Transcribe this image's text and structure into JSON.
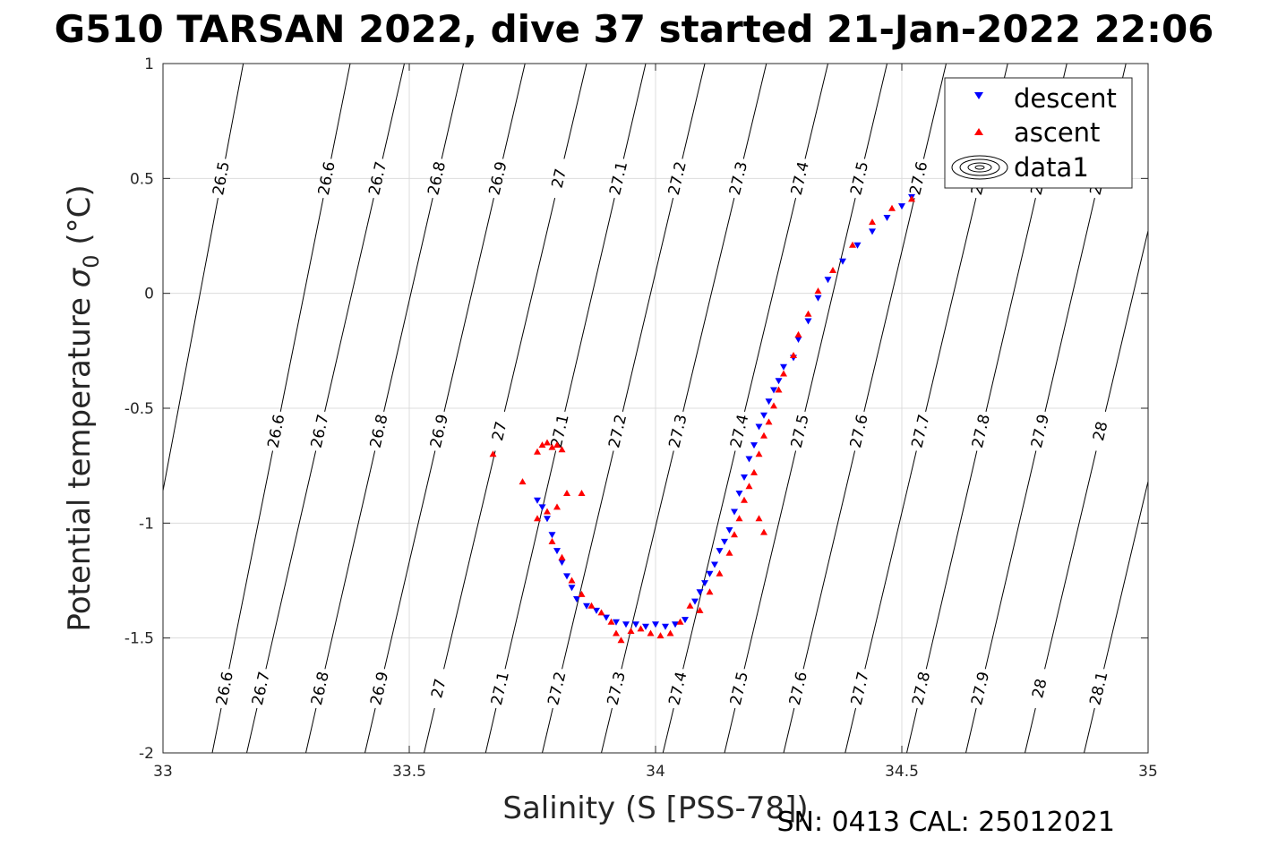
{
  "chart_data": {
    "type": "scatter",
    "title": "G510 TARSAN 2022, dive 37 started 21-Jan-2022 22:06",
    "xlabel": "Salinity (S [PSS-78])",
    "ylabel": "Potential temperature σ₀ (°C)",
    "ylabel_main": "Potential temperature ",
    "ylabel_sym": "σ",
    "ylabel_sub": "0",
    "ylabel_unit": " (°C)",
    "xlim": [
      33,
      35
    ],
    "ylim": [
      -2,
      1
    ],
    "xticks": [
      "33",
      "33.5",
      "34",
      "34.5",
      "35"
    ],
    "yticks": [
      "-2",
      "-1.5",
      "-1",
      "-0.5",
      "0",
      "0.5",
      "1"
    ],
    "grid": true,
    "legend_position": "top-right",
    "legend": [
      "descent",
      "ascent",
      "data1"
    ],
    "footer": "SN: 0413  CAL: 25012021",
    "colors": {
      "descent": "#0000ff",
      "ascent": "#ff0000",
      "contour": "#000000",
      "grid": "#dcdcdc"
    },
    "contour_levels": [
      "26.5",
      "26.6",
      "26.7",
      "26.8",
      "26.9",
      "27",
      "27.1",
      "27.2",
      "27.3",
      "27.4",
      "27.5",
      "27.6",
      "27.7",
      "27.8",
      "27.9",
      "28",
      "28.1"
    ],
    "contour_lines": [
      {
        "level": "26.5",
        "bottom": [
          32.9,
          -2
        ],
        "top": [
          33.163,
          1
        ]
      },
      {
        "level": "26.6",
        "bottom": [
          33.1,
          -2
        ],
        "top": [
          33.38,
          1
        ]
      },
      {
        "level": "26.7",
        "bottom": [
          33.17,
          -2
        ],
        "top": [
          33.49,
          1
        ]
      },
      {
        "level": "26.8",
        "bottom": [
          33.29,
          -2
        ],
        "top": [
          33.61,
          1
        ]
      },
      {
        "level": "26.9",
        "bottom": [
          33.41,
          -2
        ],
        "top": [
          33.735,
          1
        ]
      },
      {
        "level": "27",
        "bottom": [
          33.53,
          -2
        ],
        "top": [
          33.86,
          1
        ]
      },
      {
        "level": "27.1",
        "bottom": [
          33.655,
          -2
        ],
        "top": [
          33.98,
          1
        ]
      },
      {
        "level": "27.2",
        "bottom": [
          33.77,
          -2
        ],
        "top": [
          34.1,
          1
        ]
      },
      {
        "level": "27.3",
        "bottom": [
          33.89,
          -2
        ],
        "top": [
          34.225,
          1
        ]
      },
      {
        "level": "27.4",
        "bottom": [
          34.015,
          -2
        ],
        "top": [
          34.35,
          1
        ]
      },
      {
        "level": "27.5",
        "bottom": [
          34.14,
          -2
        ],
        "top": [
          34.47,
          1
        ]
      },
      {
        "level": "27.6",
        "bottom": [
          34.26,
          -2
        ],
        "top": [
          34.59,
          1
        ]
      },
      {
        "level": "27.7",
        "bottom": [
          34.385,
          -2
        ],
        "top": [
          34.715,
          1
        ]
      },
      {
        "level": "27.8",
        "bottom": [
          34.51,
          -2
        ],
        "top": [
          34.835,
          1
        ]
      },
      {
        "level": "27.9",
        "bottom": [
          34.63,
          -2
        ],
        "top": [
          34.955,
          1
        ]
      },
      {
        "level": "28",
        "bottom": [
          34.75,
          -2
        ],
        "top": [
          35.08,
          1
        ]
      },
      {
        "level": "28.1",
        "bottom": [
          34.87,
          -2
        ],
        "top": [
          35.2,
          1
        ]
      }
    ],
    "series": [
      {
        "name": "descent",
        "x": [
          34.52,
          34.5,
          34.47,
          34.44,
          34.41,
          34.38,
          34.35,
          34.33,
          34.31,
          34.29,
          34.28,
          34.26,
          34.25,
          34.24,
          34.23,
          34.22,
          34.21,
          34.2,
          34.19,
          34.18,
          34.17,
          34.16,
          34.15,
          34.14,
          34.13,
          34.12,
          34.11,
          34.1,
          34.09,
          34.08,
          34.06,
          34.04,
          34.02,
          34.0,
          33.98,
          33.96,
          33.94,
          33.92,
          33.9,
          33.88,
          33.86,
          33.84,
          33.83,
          33.82,
          33.81,
          33.8,
          33.79,
          33.78,
          33.77,
          33.76
        ],
        "y": [
          0.42,
          0.38,
          0.33,
          0.27,
          0.21,
          0.14,
          0.06,
          -0.02,
          -0.12,
          -0.2,
          -0.28,
          -0.32,
          -0.38,
          -0.42,
          -0.47,
          -0.53,
          -0.58,
          -0.66,
          -0.72,
          -0.8,
          -0.87,
          -0.95,
          -1.03,
          -1.08,
          -1.12,
          -1.18,
          -1.22,
          -1.26,
          -1.3,
          -1.34,
          -1.42,
          -1.44,
          -1.45,
          -1.44,
          -1.45,
          -1.44,
          -1.44,
          -1.43,
          -1.41,
          -1.38,
          -1.36,
          -1.33,
          -1.28,
          -1.23,
          -1.17,
          -1.12,
          -1.05,
          -0.98,
          -0.93,
          -0.9
        ]
      },
      {
        "name": "ascent",
        "x": [
          33.67,
          33.73,
          33.76,
          33.77,
          33.78,
          33.79,
          33.8,
          33.81,
          33.82,
          33.8,
          33.78,
          33.76,
          33.79,
          33.81,
          33.83,
          33.85,
          33.87,
          33.89,
          33.91,
          33.92,
          33.93,
          33.95,
          33.97,
          33.99,
          34.01,
          34.03,
          34.05,
          34.07,
          34.09,
          34.11,
          34.13,
          34.15,
          34.16,
          34.17,
          34.18,
          34.19,
          34.2,
          34.21,
          34.22,
          34.23,
          34.24,
          34.25,
          34.26,
          34.28,
          34.29,
          34.31,
          34.33,
          34.36,
          34.4,
          34.44,
          34.48,
          34.52,
          33.85,
          34.21,
          34.22
        ],
        "y": [
          -0.7,
          -0.82,
          -0.69,
          -0.66,
          -0.65,
          -0.67,
          -0.66,
          -0.68,
          -0.87,
          -0.93,
          -0.95,
          -0.98,
          -1.08,
          -1.15,
          -1.25,
          -1.31,
          -1.36,
          -1.39,
          -1.43,
          -1.48,
          -1.51,
          -1.47,
          -1.46,
          -1.48,
          -1.49,
          -1.48,
          -1.43,
          -1.36,
          -1.38,
          -1.3,
          -1.22,
          -1.13,
          -1.05,
          -0.98,
          -0.9,
          -0.84,
          -0.78,
          -0.7,
          -0.62,
          -0.56,
          -0.49,
          -0.42,
          -0.35,
          -0.27,
          -0.18,
          -0.09,
          0.01,
          0.1,
          0.21,
          0.31,
          0.37,
          0.41,
          -0.87,
          -0.98,
          -1.04
        ]
      }
    ]
  }
}
